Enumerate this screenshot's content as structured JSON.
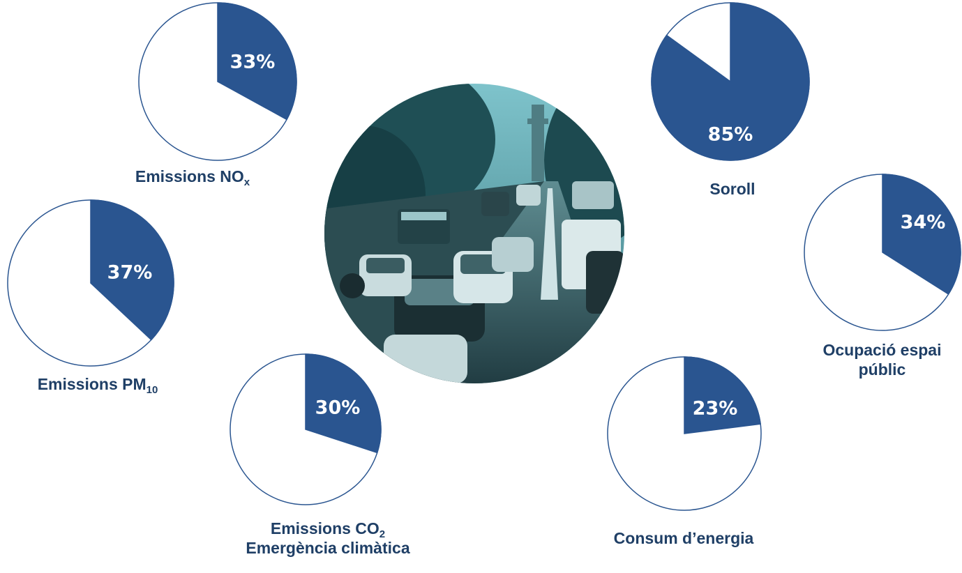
{
  "charts": [
    {
      "id": "nox",
      "value": 33,
      "pct_label": "33%",
      "title": "Emissions NO",
      "sub": "x",
      "title2": ""
    },
    {
      "id": "pm10",
      "value": 37,
      "pct_label": "37%",
      "title": "Emissions PM",
      "sub": "10",
      "title2": ""
    },
    {
      "id": "co2",
      "value": 30,
      "pct_label": "30%",
      "title": "Emissions CO",
      "sub": "2",
      "title2": "Emergència climàtica"
    },
    {
      "id": "soroll",
      "value": 85,
      "pct_label": "85%",
      "title": "Soroll",
      "sub": "",
      "title2": ""
    },
    {
      "id": "espai",
      "value": 34,
      "pct_label": "34%",
      "title": "Ocupació espai",
      "sub": "",
      "title2": "públic"
    },
    {
      "id": "energia",
      "value": 23,
      "pct_label": "23%",
      "title": "Consum d’energia",
      "sub": "",
      "title2": ""
    }
  ],
  "chart_data": {
    "type": "pie",
    "categories": [
      "Emissions NOx",
      "Emissions PM10",
      "Emissions CO2 Emergència climàtica",
      "Soroll",
      "Ocupació espai públic",
      "Consum d’energia"
    ],
    "values": [
      33,
      37,
      30,
      85,
      34,
      23
    ],
    "unit": "%"
  },
  "colors": {
    "slice": "#2a5590",
    "outline": "#2a5590",
    "text": "#1f3f66",
    "photo_tint": "#2d6f78"
  },
  "photo": {
    "icon": "traffic-photo"
  }
}
